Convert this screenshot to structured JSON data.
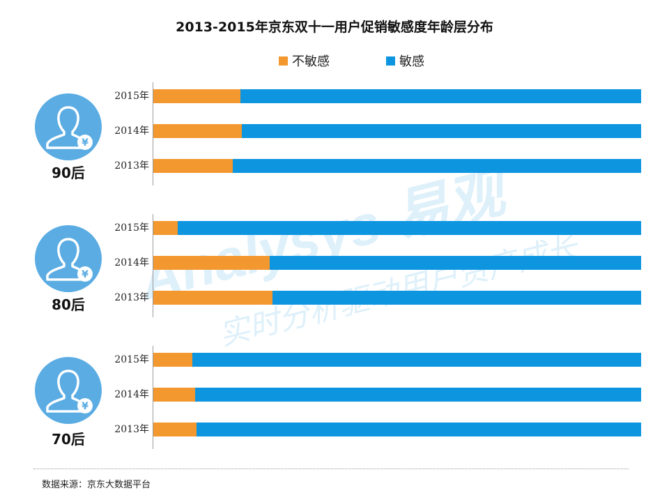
{
  "chart_data": {
    "type": "bar",
    "orientation": "horizontal",
    "stacked": true,
    "percent": true,
    "title": "2013-2015年京东双十一用户促销敏感度年龄层分布",
    "legend": [
      {
        "name": "不敏感",
        "color": "#f3982f"
      },
      {
        "name": "敏感",
        "color": "#0d95e0"
      }
    ],
    "legend_position": "top",
    "groups": [
      {
        "label": "90后",
        "rows": [
          {
            "year": "2015年",
            "not_sensitive": 17.9,
            "sensitive": 82.1
          },
          {
            "year": "2014年",
            "not_sensitive": 18.2,
            "sensitive": 81.8
          },
          {
            "year": "2013年",
            "not_sensitive": 16.3,
            "sensitive": 83.7
          }
        ]
      },
      {
        "label": "80后",
        "rows": [
          {
            "year": "2015年",
            "not_sensitive": 5.0,
            "sensitive": 95.0
          },
          {
            "year": "2014年",
            "not_sensitive": 23.9,
            "sensitive": 76.1
          },
          {
            "year": "2013年",
            "not_sensitive": 24.4,
            "sensitive": 75.6
          }
        ]
      },
      {
        "label": "70后",
        "rows": [
          {
            "year": "2015年",
            "not_sensitive": 8.0,
            "sensitive": 92.0
          },
          {
            "year": "2014年",
            "not_sensitive": 8.6,
            "sensitive": 91.4
          },
          {
            "year": "2013年",
            "not_sensitive": 8.8,
            "sensitive": 91.2
          }
        ]
      }
    ]
  },
  "source_text": "数据来源：京东大数据平台",
  "watermark": {
    "brand": "Analysys 易观",
    "slogan": "实时分析驱动用户资产成长"
  },
  "icons": {
    "avatar": "user-yuan-icon"
  },
  "colors": {
    "avatar_circle": "#5aace3"
  }
}
